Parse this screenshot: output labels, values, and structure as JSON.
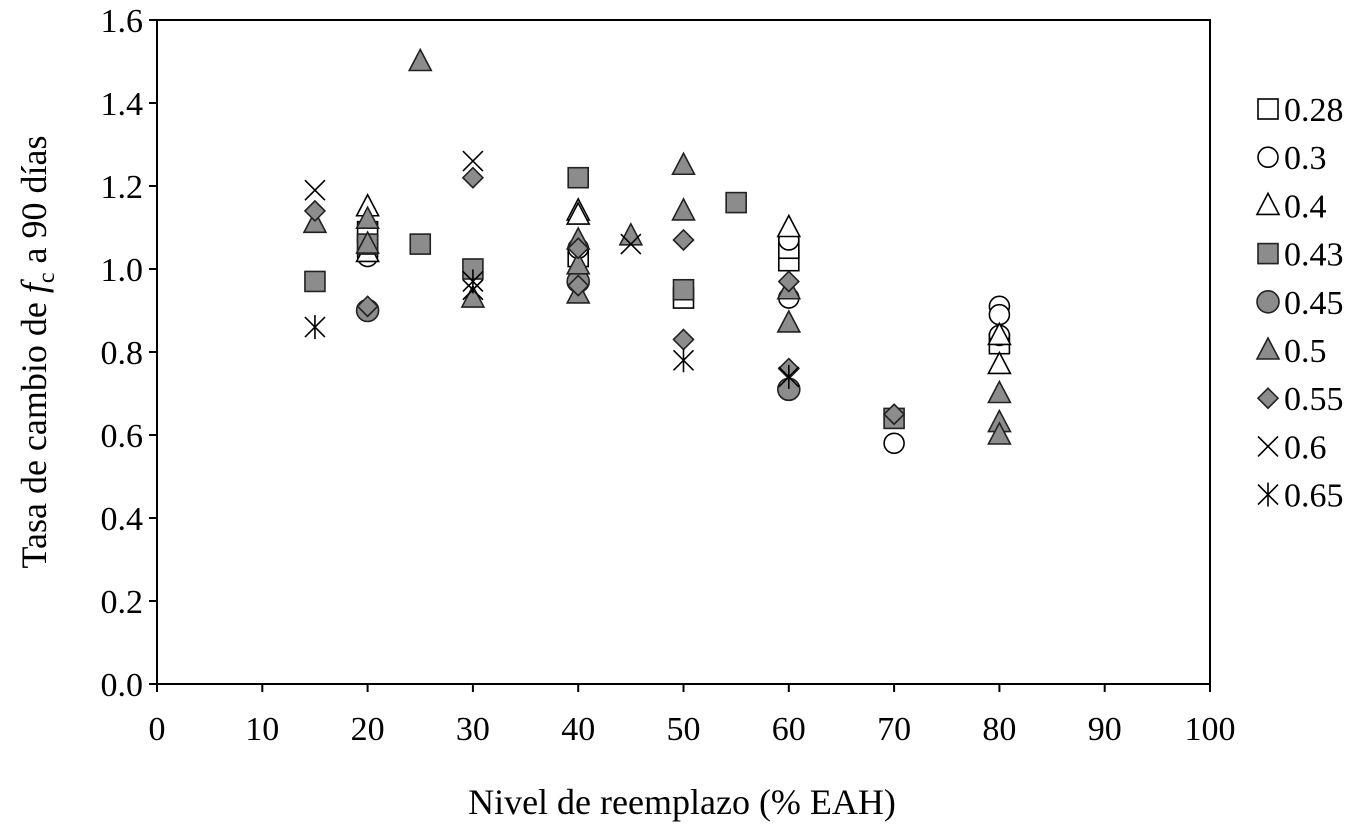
{
  "chart_data": {
    "type": "scatter",
    "xlabel": "Nivel de reemplazo (% EAH)",
    "ylabel": {
      "before": "Tasa de cambio de ",
      "var": "f",
      "sub": "c",
      "after": " a 90 días"
    },
    "xlim": [
      0,
      100
    ],
    "ylim": [
      0,
      1.6
    ],
    "xticks": [
      "0",
      "10",
      "20",
      "30",
      "40",
      "50",
      "60",
      "70",
      "80",
      "90",
      "100"
    ],
    "yticks": [
      "0.0",
      "0.2",
      "0.4",
      "0.6",
      "0.8",
      "1.0",
      "1.2",
      "1.4",
      "1.6"
    ],
    "grid": false,
    "legend_position": "right",
    "series": [
      {
        "name": "0.28",
        "marker": "square-open",
        "points": [
          [
            20,
            1.06
          ],
          [
            20,
            1.09
          ],
          [
            40,
            1.03
          ],
          [
            50,
            0.93
          ],
          [
            60,
            1.02
          ],
          [
            60,
            1.05
          ],
          [
            80,
            0.82
          ]
        ]
      },
      {
        "name": "0.3",
        "marker": "circle-open",
        "points": [
          [
            20,
            1.03
          ],
          [
            40,
            1.05
          ],
          [
            60,
            1.07
          ],
          [
            60,
            0.93
          ],
          [
            70,
            0.58
          ],
          [
            80,
            0.91
          ],
          [
            80,
            0.89
          ],
          [
            80,
            0.84
          ]
        ]
      },
      {
        "name": "0.4",
        "marker": "triangle-open",
        "points": [
          [
            20,
            1.15
          ],
          [
            20,
            1.04
          ],
          [
            40,
            1.14
          ],
          [
            40,
            1.13
          ],
          [
            60,
            1.1
          ],
          [
            80,
            0.84
          ],
          [
            80,
            0.77
          ]
        ]
      },
      {
        "name": "0.43",
        "marker": "square-filled",
        "points": [
          [
            15,
            0.97
          ],
          [
            20,
            1.06
          ],
          [
            25,
            1.06
          ],
          [
            30,
            1.0
          ],
          [
            40,
            1.22
          ],
          [
            50,
            0.95
          ],
          [
            55,
            1.16
          ],
          [
            70,
            0.64
          ]
        ]
      },
      {
        "name": "0.45",
        "marker": "circle-filled",
        "points": [
          [
            20,
            0.9
          ],
          [
            40,
            0.97
          ],
          [
            60,
            0.71
          ]
        ]
      },
      {
        "name": "0.5",
        "marker": "triangle-filled",
        "points": [
          [
            15,
            1.11
          ],
          [
            20,
            1.12
          ],
          [
            20,
            1.06
          ],
          [
            25,
            1.5
          ],
          [
            30,
            0.93
          ],
          [
            40,
            1.07
          ],
          [
            40,
            1.01
          ],
          [
            40,
            0.94
          ],
          [
            45,
            1.08
          ],
          [
            50,
            1.25
          ],
          [
            50,
            1.14
          ],
          [
            60,
            0.95
          ],
          [
            60,
            0.87
          ],
          [
            80,
            0.7
          ],
          [
            80,
            0.63
          ],
          [
            80,
            0.6
          ]
        ]
      },
      {
        "name": "0.55",
        "marker": "diamond-filled",
        "points": [
          [
            15,
            1.14
          ],
          [
            20,
            0.91
          ],
          [
            30,
            1.22
          ],
          [
            40,
            0.96
          ],
          [
            40,
            1.05
          ],
          [
            50,
            1.07
          ],
          [
            50,
            0.83
          ],
          [
            60,
            0.76
          ],
          [
            60,
            0.97
          ],
          [
            70,
            0.65
          ]
        ]
      },
      {
        "name": "0.6",
        "marker": "x",
        "points": [
          [
            15,
            1.19
          ],
          [
            30,
            1.26
          ],
          [
            30,
            0.95
          ],
          [
            45,
            1.06
          ]
        ]
      },
      {
        "name": "0.65",
        "marker": "asterisk",
        "points": [
          [
            15,
            0.86
          ],
          [
            30,
            0.97
          ],
          [
            50,
            0.78
          ],
          [
            60,
            0.74
          ]
        ]
      }
    ]
  }
}
